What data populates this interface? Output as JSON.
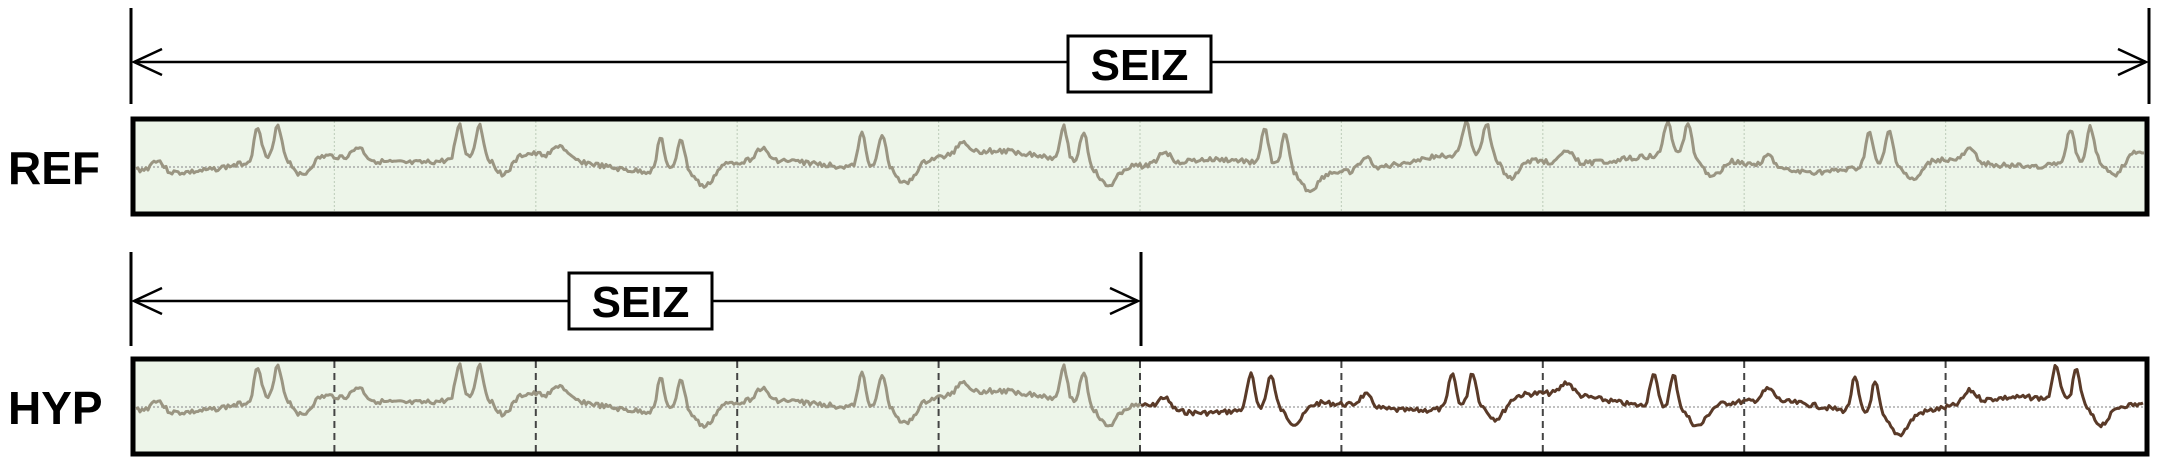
{
  "rows": {
    "ref": {
      "label": "REF",
      "annotation": "SEIZ",
      "background": "#edf5e9",
      "trace_color": "#9a9582",
      "segment_count": 10,
      "segment_divider_style": "dotted",
      "annotation_extent_segments": [
        0,
        10
      ]
    },
    "hyp": {
      "label": "HYP",
      "annotation": "SEIZ",
      "background_annotated": "#edf5e9",
      "background_unannotated": "#ffffff",
      "trace_color_annotated": "#9a9582",
      "trace_color_unannotated": "#5a3a28",
      "segment_count": 10,
      "segment_divider_style": "dashed",
      "annotation_extent_segments": [
        0,
        5
      ]
    }
  },
  "colors": {
    "frame": "#000000",
    "baseline": "#9a9a9a",
    "arrow": "#000000"
  }
}
